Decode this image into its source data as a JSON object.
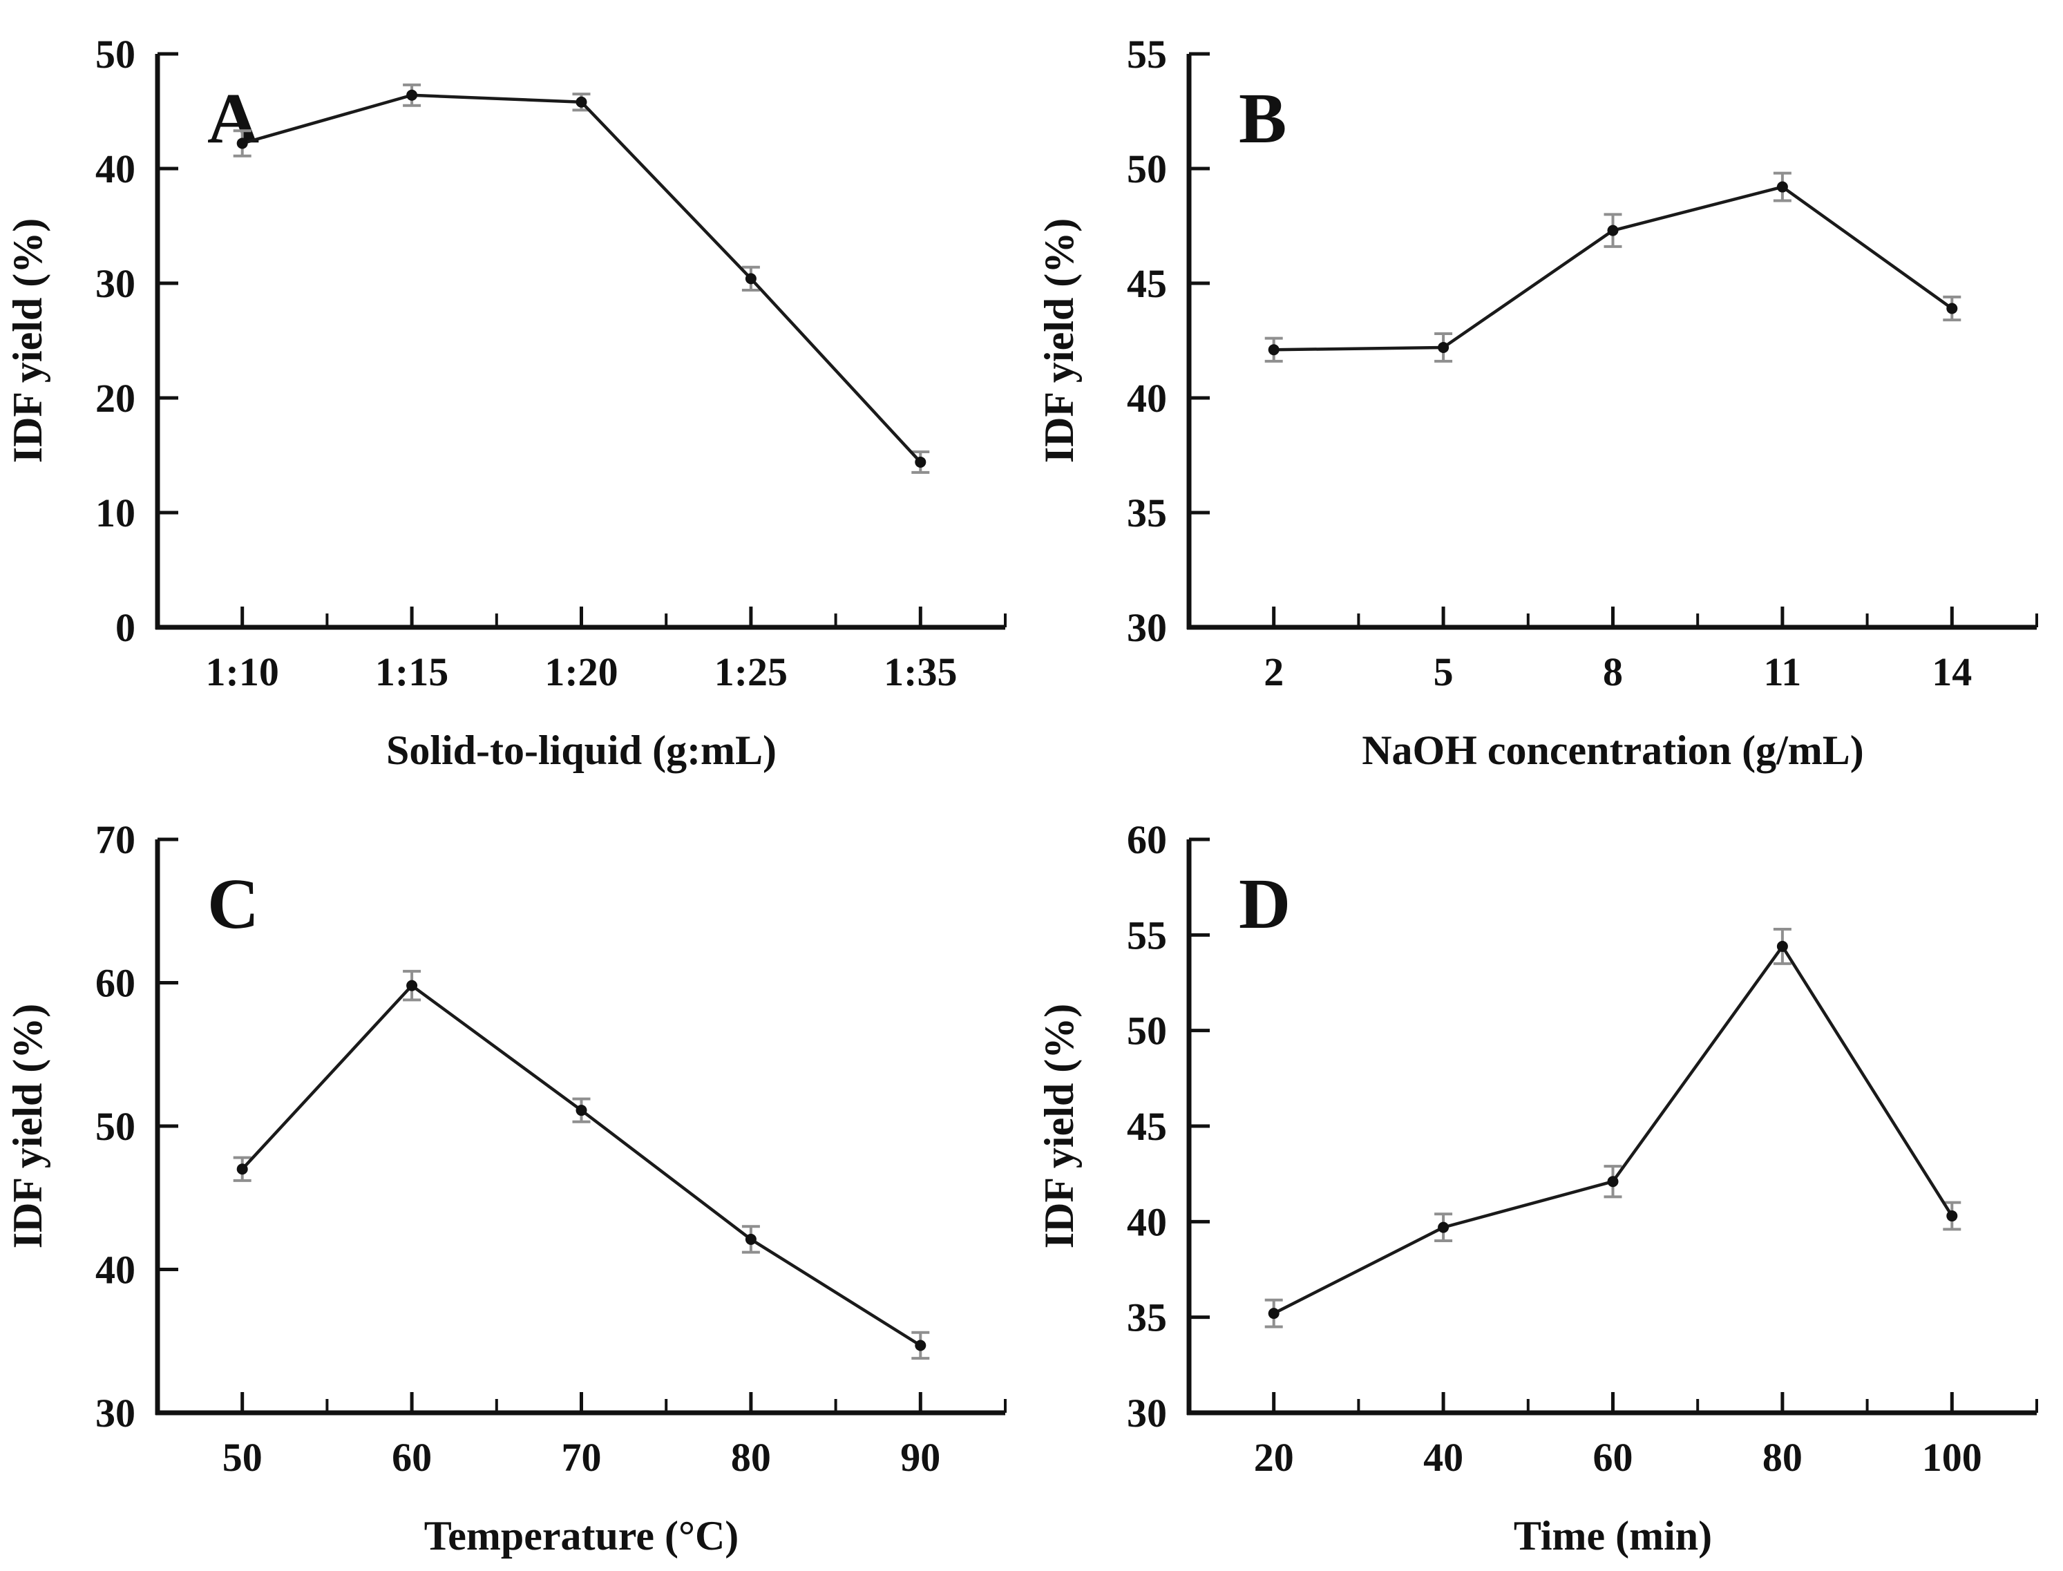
{
  "figure": {
    "background": "#ffffff",
    "shared_ylabel": "IDF yield (%)"
  },
  "style": {
    "line_color": "#1a1a1a",
    "marker_color": "#111111",
    "error_bar_color": "#8f8f8f",
    "axis_color": "#111111",
    "text_color": "#111111"
  },
  "chart_data": [
    {
      "type": "line",
      "panel_label": "A",
      "categories": [
        "1:10",
        "1:15",
        "1:20",
        "1:25",
        "1:35"
      ],
      "values": [
        42.2,
        46.4,
        45.8,
        30.4,
        14.4
      ],
      "errors": [
        1.1,
        0.9,
        0.7,
        1.0,
        0.9
      ],
      "xlabel": "Solid-to-liquid (g:mL)",
      "ylabel": "IDF yield (%)",
      "ylim": [
        0,
        50
      ],
      "ytick_step": 10,
      "grid": false,
      "legend": "none",
      "marker": "circle",
      "error_bars": true
    },
    {
      "type": "line",
      "panel_label": "B",
      "categories": [
        "2",
        "5",
        "8",
        "11",
        "14"
      ],
      "values": [
        42.1,
        42.2,
        47.3,
        49.2,
        43.9
      ],
      "errors": [
        0.5,
        0.6,
        0.7,
        0.6,
        0.5
      ],
      "xlabel": "NaOH concentration (g/mL)",
      "ylabel": "IDF yield (%)",
      "ylim": [
        30,
        55
      ],
      "ytick_step": 5,
      "grid": false,
      "legend": "none",
      "marker": "circle",
      "error_bars": true
    },
    {
      "type": "line",
      "panel_label": "C",
      "categories": [
        "50",
        "60",
        "70",
        "80",
        "90"
      ],
      "values": [
        47.0,
        59.8,
        51.1,
        42.1,
        34.7
      ],
      "errors": [
        0.8,
        1.0,
        0.8,
        0.9,
        0.9
      ],
      "xlabel": "Temperature (°C)",
      "ylabel": "IDF yield (%)",
      "ylim": [
        30,
        70
      ],
      "ytick_step": 10,
      "grid": false,
      "legend": "none",
      "marker": "circle",
      "error_bars": true
    },
    {
      "type": "line",
      "panel_label": "D",
      "categories": [
        "20",
        "40",
        "60",
        "80",
        "100"
      ],
      "values": [
        35.2,
        39.7,
        42.1,
        54.4,
        40.3
      ],
      "errors": [
        0.7,
        0.7,
        0.8,
        0.9,
        0.7
      ],
      "xlabel": "Time (min)",
      "ylabel": "IDF yield (%)",
      "ylim": [
        30,
        60
      ],
      "ytick_step": 5,
      "grid": false,
      "legend": "none",
      "marker": "circle",
      "error_bars": true
    }
  ]
}
